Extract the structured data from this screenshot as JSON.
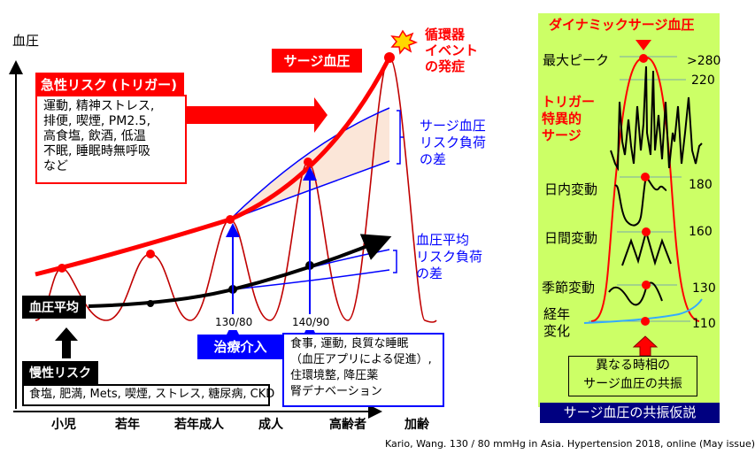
{
  "axis": {
    "y_label": "血圧",
    "x_label": "加齢",
    "x_ticks": [
      "小児",
      "若年",
      "若年成人",
      "成人",
      "高齢者"
    ]
  },
  "acute": {
    "title": "急性リスク (トリガー)",
    "lines": [
      "運動, 精神ストレス,",
      "排便, 喫煙, PM2.5,",
      "高食塩, 飲酒, 低温",
      "不眠, 睡眠時無呼吸",
      "など"
    ]
  },
  "surge_label": "サージ血圧",
  "event": {
    "lines": [
      "循環器",
      "イベント",
      "の発症"
    ]
  },
  "surge_diff": {
    "lines": [
      "サージ血圧",
      "リスク負荷",
      "の差"
    ]
  },
  "mean_diff": {
    "lines": [
      "血圧平均",
      "リスク負荷",
      "の差"
    ]
  },
  "mean_label": "血圧平均",
  "thresholds": [
    "130/80",
    "140/90"
  ],
  "treatment": {
    "title": "治療介入",
    "lines": [
      "食事, 運動, 良質な睡眠",
      "（血圧アプリによる促進）,",
      "住環境整, 降圧薬",
      "腎デナベーション"
    ]
  },
  "chronic": {
    "title": "慢性リスク",
    "items": "食塩, 肥満, Mets, 喫煙, ストレス, 糖尿病, CKD"
  },
  "panel": {
    "title": "ダイナミックサージ血圧",
    "peak": "最大ピーク",
    "trigger": [
      "トリガー",
      "特異的",
      "サージ"
    ],
    "levels": [
      ">280",
      "220",
      "180",
      "160",
      "130",
      "110"
    ],
    "rows": [
      "日内変動",
      "日間変動",
      "季節変動"
    ],
    "yearly": [
      "経年",
      "変化"
    ],
    "resonance": [
      "異なる時相の",
      "サージ血圧の共振"
    ],
    "footer": "サージ血圧の共振仮説",
    "colors": {
      "bg": "#ccff66",
      "footer": "#000080",
      "accent": "#ff0000"
    }
  },
  "citation": "Kario, Wang.  130 / 80 mmHg in Asia.  Hypertension 2018,  online (May issue)"
}
